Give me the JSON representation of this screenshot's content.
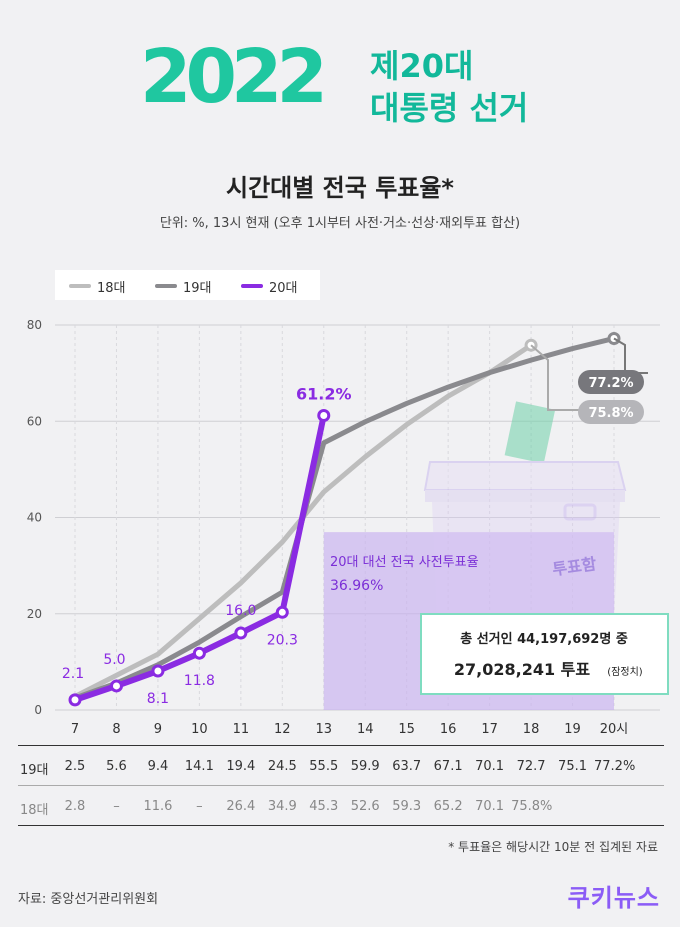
{
  "header": {
    "year": "2022",
    "line1": "제20대",
    "line2": "대통령 선거"
  },
  "chart_data": {
    "type": "line",
    "title": "시간대별 전국 투표율*",
    "subtitle": "단위: %, 13시 현재 (오후 1시부터 사전·거소·선상·재외투표 합산)",
    "x": [
      7,
      8,
      9,
      10,
      11,
      12,
      13,
      14,
      15,
      16,
      17,
      18,
      19,
      20
    ],
    "x_tick_labels": [
      "7",
      "8",
      "9",
      "10",
      "11",
      "12",
      "13",
      "14",
      "15",
      "16",
      "17",
      "18",
      "19",
      "20시"
    ],
    "ylim": [
      0,
      80
    ],
    "y_ticks": [
      0,
      20,
      40,
      60,
      80
    ],
    "grid": true,
    "legend_position": "top-left",
    "series": [
      {
        "name": "18대",
        "color": "#bdbdbd",
        "x": [
          7,
          9,
          11,
          12,
          13,
          14,
          15,
          16,
          17,
          18
        ],
        "values": [
          2.8,
          11.6,
          26.4,
          34.9,
          45.3,
          52.6,
          59.3,
          65.2,
          70.1,
          75.8
        ]
      },
      {
        "name": "19대",
        "color": "#8a8a8e",
        "x": [
          7,
          8,
          9,
          10,
          11,
          12,
          13,
          14,
          15,
          16,
          17,
          18,
          19,
          20
        ],
        "values": [
          2.5,
          5.6,
          9.4,
          14.1,
          19.4,
          24.5,
          55.5,
          59.9,
          63.7,
          67.1,
          70.1,
          72.7,
          75.1,
          77.2
        ]
      },
      {
        "name": "20대",
        "color": "#8a2be2",
        "x": [
          7,
          8,
          9,
          10,
          11,
          12,
          13
        ],
        "values": [
          2.1,
          5.0,
          8.1,
          11.8,
          16.0,
          20.3,
          61.2
        ]
      }
    ],
    "point_labels_20": [
      "2.1",
      "5.0",
      "8.1",
      "11.8",
      "16.0",
      "20.3",
      "61.2%"
    ],
    "end_labels": {
      "s19": "77.2%",
      "s18": "75.8%"
    },
    "annotations": {
      "early_vote_title": "20대 대선 전국 사전투표율",
      "early_vote_value": "36.96%",
      "early_vote_rate": 36.96,
      "ballot_box_label": "투표함",
      "total_line1": "총 선거인 44,197,692명 중",
      "total_line2": "27,028,241 투표",
      "total_suffix": "(잠정치)"
    },
    "table": {
      "rows": [
        {
          "label": "19대",
          "cells": [
            "2.5",
            "5.6",
            "9.4",
            "14.1",
            "19.4",
            "24.5",
            "55.5",
            "59.9",
            "63.7",
            "67.1",
            "70.1",
            "72.7",
            "75.1",
            "77.2%"
          ]
        },
        {
          "label": "18대",
          "cells": [
            "2.8",
            "–",
            "11.6",
            "–",
            "26.4",
            "34.9",
            "45.3",
            "52.6",
            "59.3",
            "65.2",
            "70.1",
            "75.8%",
            "",
            ""
          ]
        }
      ]
    }
  },
  "footnote": "* 투표율은 해당시간 10분 전 집계된 자료",
  "source": "자료: 중앙선거관리위원회",
  "logo": "쿠키뉴스"
}
